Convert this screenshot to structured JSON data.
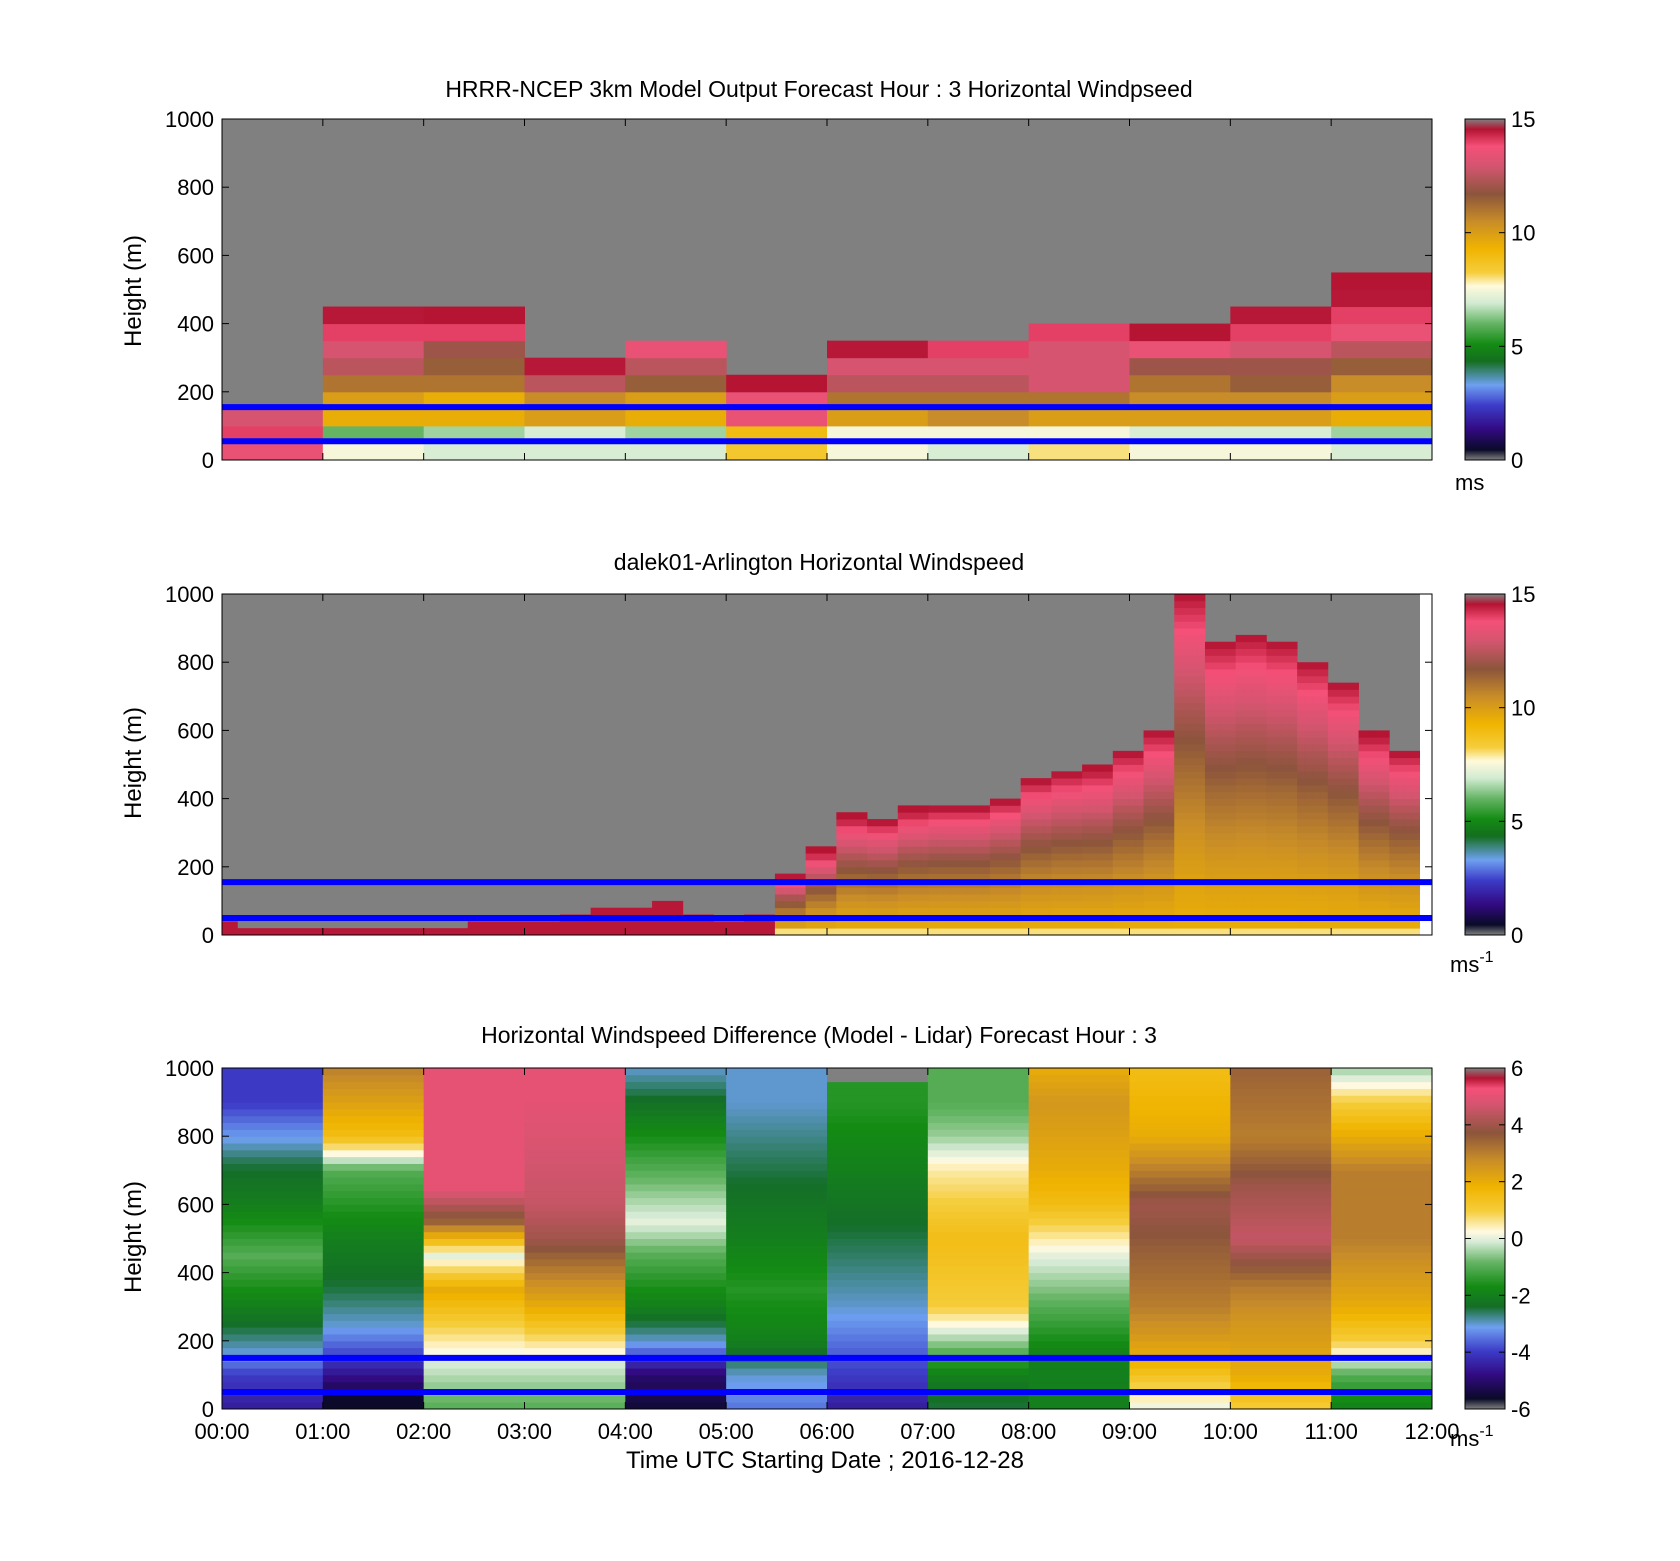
{
  "figure": {
    "xlabel": "Time UTC  Starting Date ; 2016-12-28"
  },
  "chart_data": [
    {
      "type": "heatmap",
      "title": "HRRR-NCEP 3km Model Output   Forecast Hour : 3 Horizontal Windpseed",
      "ylabel": "Height (m)",
      "ylim": [
        0,
        1000
      ],
      "yticks": [
        "0",
        "200",
        "400",
        "600",
        "800",
        "1000"
      ],
      "x_ticks": [
        "00:00",
        "01:00",
        "02:00",
        "03:00",
        "04:00",
        "05:00",
        "06:00",
        "07:00",
        "08:00",
        "09:00",
        "10:00",
        "11:00",
        "12:00"
      ],
      "show_xticklabels": false,
      "colorbar": {
        "min": 0,
        "max": 15,
        "ticks": [
          "0",
          "5",
          "10",
          "15"
        ],
        "unit": "ms"
      },
      "reference_lines_m": [
        55,
        155
      ],
      "reference_line_color": "#0000ff",
      "missing_color": "#808080",
      "cell_step_m": 50,
      "time_bins_hours": [
        0,
        1,
        2,
        3,
        4,
        5,
        6,
        7,
        8,
        9,
        10,
        11
      ],
      "columns": [
        [
          13.5,
          14,
          13
        ],
        [
          7.5,
          6,
          9.5,
          10,
          11,
          12.5,
          13,
          14,
          14.5
        ],
        [
          7,
          6.5,
          9.5,
          9.5,
          11,
          11.5,
          12,
          14,
          15
        ],
        [
          7,
          7,
          10,
          10.5,
          12.5,
          14.5
        ],
        [
          7,
          6.5,
          9.5,
          10,
          11.5,
          12.5,
          13.5
        ],
        [
          8.5,
          9,
          13.5,
          13.5,
          15
        ],
        [
          7.5,
          7.5,
          10,
          11,
          12.5,
          13,
          14.5
        ],
        [
          7,
          7.5,
          10.5,
          11,
          12.5,
          13,
          14
        ],
        [
          8,
          7.5,
          10,
          11,
          13,
          13,
          13,
          14
        ],
        [
          7.5,
          7,
          10,
          10.5,
          11,
          12,
          13.5,
          15
        ],
        [
          7.5,
          7,
          10,
          10.5,
          11.5,
          12,
          13,
          14,
          14.5
        ],
        [
          7,
          6.5,
          9.5,
          10,
          10.5,
          11.5,
          12.5,
          13.5,
          14,
          14.5,
          15
        ]
      ]
    },
    {
      "type": "heatmap",
      "title": "dalek01-Arlington  Horizontal Windspeed",
      "ylabel": "Height (m)",
      "ylim": [
        0,
        1000
      ],
      "yticks": [
        "0",
        "200",
        "400",
        "600",
        "800",
        "1000"
      ],
      "show_xticklabels": false,
      "colorbar": {
        "min": 0,
        "max": 15,
        "ticks": [
          "0",
          "5",
          "10",
          "15"
        ],
        "unit": "ms",
        "unit_superscript": "-1"
      },
      "reference_lines_m": [
        50,
        155
      ],
      "reference_line_color": "#0000ff",
      "missing_color": "#808080",
      "column_width_hours": 0.25,
      "profile_tops_m": [
        40,
        30,
        20,
        20,
        20,
        20,
        20,
        20,
        20,
        20,
        20,
        20,
        20,
        20,
        20,
        20,
        20,
        20,
        20,
        20,
        20,
        20,
        20,
        20,
        20,
        20,
        20,
        20,
        20,
        20,
        20,
        20,
        40,
        40,
        40,
        40,
        30,
        30,
        30,
        30,
        40,
        40,
        40,
        40,
        60,
        60,
        60,
        60,
        70,
        70,
        70,
        70,
        80,
        80,
        80,
        80,
        100,
        100,
        100,
        100,
        50,
        50,
        50,
        50,
        40,
        40,
        40,
        40,
        60,
        60,
        60,
        60,
        180,
        180,
        180,
        180,
        250,
        250,
        250,
        250,
        350,
        350,
        350,
        350,
        340,
        340,
        340,
        340,
        370,
        370,
        370,
        370,
        380,
        380,
        380,
        380,
        380,
        380,
        380,
        380,
        400,
        400,
        400,
        400,
        460,
        460,
        460,
        460,
        480,
        480,
        480,
        480,
        490,
        490,
        490,
        490,
        540,
        540,
        540,
        540,
        600,
        600,
        600,
        600,
        1000,
        1000,
        1000,
        1000,
        860,
        860,
        860,
        860,
        880,
        880,
        880,
        880,
        860,
        860,
        860,
        860,
        800,
        800,
        800,
        800,
        740,
        740,
        740,
        740,
        590,
        590,
        590,
        590,
        540,
        540,
        540,
        540
      ],
      "profile_tops_note_hours_per_entry": 0.0729,
      "core_speed_ms": 9.5,
      "top_speed_ms": 14.5
    },
    {
      "type": "heatmap",
      "title": "Horizontal Windspeed Difference (Model - Lidar) Forecast Hour : 3",
      "ylabel": "Height (m)",
      "ylim": [
        0,
        1000
      ],
      "yticks": [
        "0",
        "200",
        "400",
        "600",
        "800",
        "1000"
      ],
      "xlabel": "Time UTC  Starting Date ; 2016-12-28",
      "colorbar": {
        "min": -6,
        "max": 6,
        "ticks": [
          "-6",
          "-4",
          "-2",
          "0",
          "2",
          "4",
          "6"
        ],
        "unit": "ms",
        "unit_superscript": "-1"
      },
      "reference_lines_m": [
        50,
        150
      ],
      "reference_line_color": "#0000ff",
      "missing_color": "#808080",
      "time_bins_hours": [
        0,
        1,
        2,
        3,
        4,
        5,
        6,
        7,
        8,
        9,
        10,
        11
      ],
      "column_profiles": [
        {
          "levels_m": [
            0,
            100,
            170,
            300,
            450,
            600,
            720,
            900,
            1000
          ],
          "values": [
            -4.5,
            -4,
            -3,
            -2,
            -1,
            -2,
            -2.5,
            -4,
            -4
          ]
        },
        {
          "levels_m": [
            0,
            150,
            250,
            350,
            500,
            700,
            800,
            1000
          ],
          "values": [
            -6,
            -4,
            -3,
            -2.5,
            -2,
            -1,
            1.5,
            3
          ]
        },
        {
          "levels_m": [
            0,
            150,
            250,
            350,
            450,
            550,
            650,
            680,
            1000
          ],
          "values": [
            -1,
            0,
            1,
            2,
            0,
            3.5,
            5,
            null,
            5
          ]
        },
        {
          "levels_m": [
            0,
            150,
            300,
            400,
            500,
            600,
            900,
            1000
          ],
          "values": [
            -1,
            0,
            2,
            3,
            4,
            4.5,
            5,
            5
          ]
        },
        {
          "levels_m": [
            0,
            100,
            200,
            300,
            450,
            550,
            700,
            850,
            1000
          ],
          "values": [
            -5.5,
            -5,
            -3,
            -2,
            -1,
            0,
            -1,
            -2,
            -3
          ]
        },
        {
          "levels_m": [
            0,
            100,
            200,
            350,
            500,
            700,
            900,
            1000
          ],
          "values": [
            -3.5,
            -3,
            -2,
            -1.5,
            -2,
            -2.5,
            -3,
            -3
          ]
        },
        {
          "levels_m": [
            0,
            100,
            200,
            300,
            500,
            700,
            900,
            950,
            1000
          ],
          "values": [
            -4.5,
            -4,
            -3.5,
            -3,
            -2.5,
            -2,
            -1.5,
            null,
            null
          ]
        },
        {
          "levels_m": [
            0,
            100,
            200,
            300,
            500,
            700,
            800,
            900,
            1000
          ],
          "values": [
            -2.5,
            -2,
            -0.5,
            1,
            1.5,
            0.5,
            -0.5,
            -1,
            -1
          ]
        },
        {
          "levels_m": [
            0,
            150,
            300,
            450,
            600,
            700,
            900,
            1000
          ],
          "values": [
            -2,
            -2,
            -1,
            0,
            1.5,
            2,
            2.5,
            2
          ]
        },
        {
          "levels_m": [
            0,
            150,
            300,
            450,
            600,
            800,
            1000
          ],
          "values": [
            0,
            2,
            3,
            3.5,
            4,
            2,
            1.5
          ]
        },
        {
          "levels_m": [
            0,
            100,
            250,
            350,
            500,
            650,
            800,
            1000
          ],
          "values": [
            1,
            2,
            2.5,
            3,
            4.5,
            4,
            3,
            3.5
          ]
        },
        {
          "levels_m": [
            0,
            100,
            200,
            300,
            500,
            700,
            900,
            1000
          ],
          "values": [
            -2,
            -1,
            1,
            2,
            3,
            3,
            1,
            -0.5
          ]
        }
      ]
    }
  ]
}
